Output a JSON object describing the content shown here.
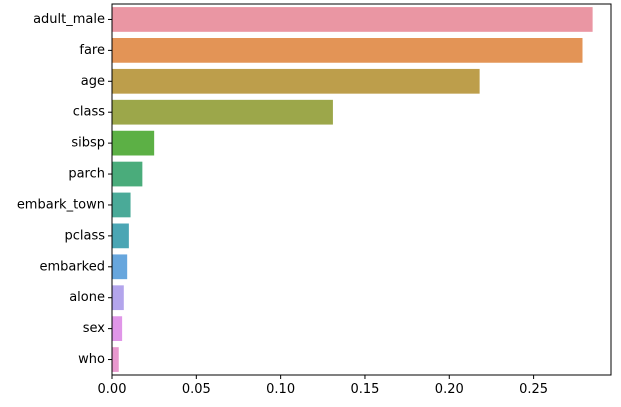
{
  "chart_data": {
    "type": "bar",
    "orientation": "horizontal",
    "categories": [
      "adult_male",
      "fare",
      "age",
      "class",
      "sibsp",
      "parch",
      "embark_town",
      "pclass",
      "embarked",
      "alone",
      "sex",
      "who"
    ],
    "values": [
      0.285,
      0.279,
      0.218,
      0.131,
      0.025,
      0.018,
      0.011,
      0.01,
      0.009,
      0.007,
      0.006,
      0.004
    ],
    "colors": [
      "#ea96a3",
      "#e39456",
      "#bd9e4b",
      "#9ca74a",
      "#5cb045",
      "#4aac7b",
      "#4aaa98",
      "#4ba6b4",
      "#67a6dd",
      "#b3a5ec",
      "#e096e8",
      "#e898ce"
    ],
    "xlim": [
      0,
      0.2959
    ],
    "xticks": [
      0.0,
      0.05,
      0.1,
      0.15,
      0.2,
      0.25
    ],
    "xtick_labels": [
      "0.00",
      "0.05",
      "0.10",
      "0.15",
      "0.20",
      "0.25"
    ],
    "title": "",
    "xlabel": "",
    "ylabel": "",
    "grid": false
  }
}
